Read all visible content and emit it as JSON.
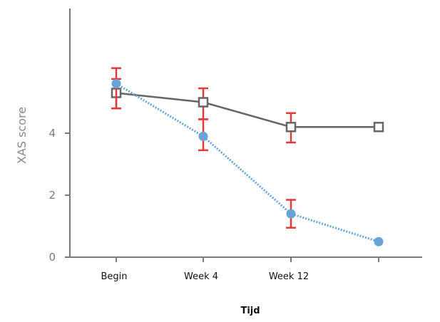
{
  "chart_data": {
    "type": "line",
    "title": "",
    "xlabel": "Tijd",
    "ylabel": "XAS score",
    "categories": [
      "Begin",
      "Week 4",
      "Week 12",
      ""
    ],
    "yticks": [
      0,
      2,
      4
    ],
    "ylim": [
      0,
      8
    ],
    "grid": false,
    "legend": "none",
    "series": [
      {
        "values": [
          5.3,
          5.0,
          4.2,
          4.2
        ],
        "err_low": [
          0.5,
          0.55,
          0.5,
          null
        ],
        "err_high": [
          0.45,
          0.45,
          0.45,
          null
        ],
        "line_style": "solid",
        "marker": "open-square",
        "color": "#666666"
      },
      {
        "values": [
          5.6,
          3.9,
          1.4,
          0.5
        ],
        "err_low": [
          0.8,
          0.45,
          0.45,
          null
        ],
        "err_high": [
          0.5,
          0.55,
          0.45,
          null
        ],
        "line_style": "dotted",
        "marker": "filled-circle",
        "color": "#6aa3d5"
      }
    ],
    "error_bar_color": "#e03a3a",
    "axis_color": "#7a7a7a"
  }
}
